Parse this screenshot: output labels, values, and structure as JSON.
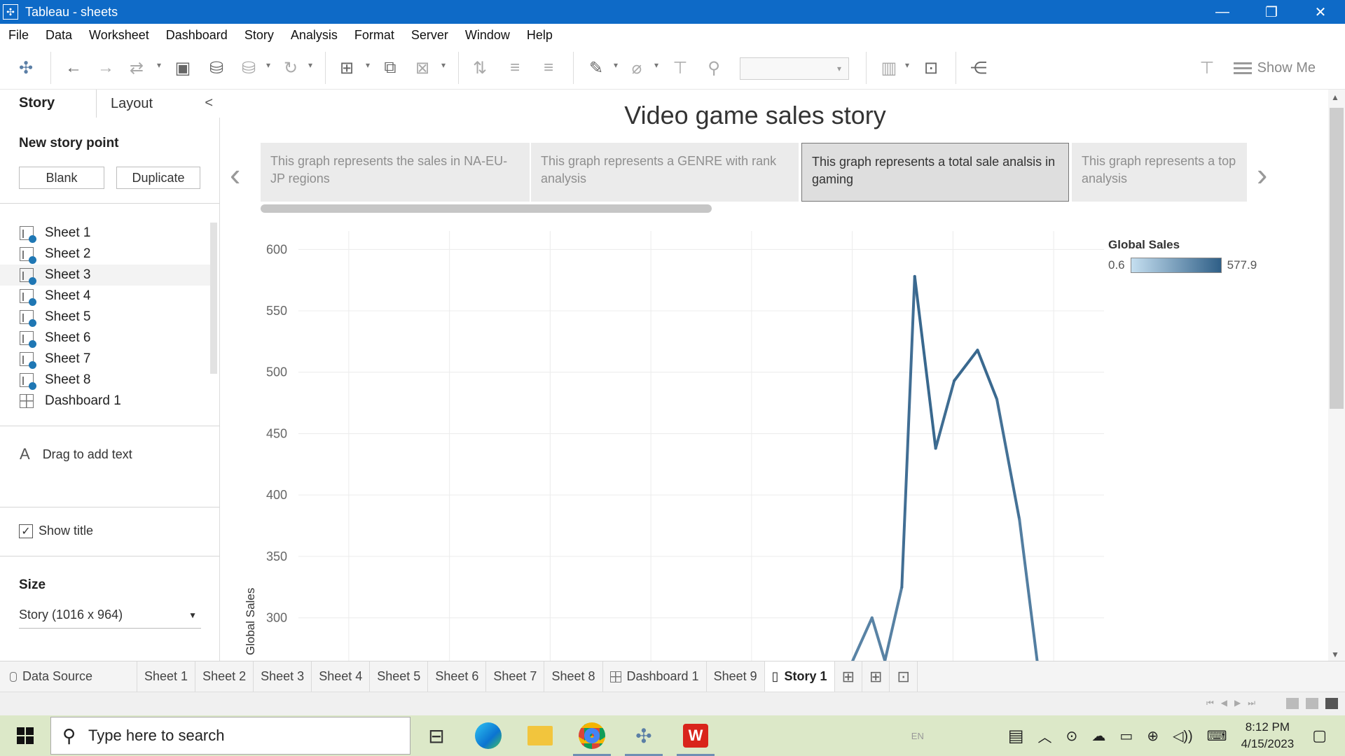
{
  "window": {
    "title": "Tableau - sheets",
    "minimize": "—",
    "restore": "❐",
    "close": "✕"
  },
  "menu": [
    "File",
    "Data",
    "Worksheet",
    "Dashboard",
    "Story",
    "Analysis",
    "Format",
    "Server",
    "Window",
    "Help"
  ],
  "toolbar": {
    "show_me": "Show Me"
  },
  "left_panel": {
    "tab_story": "Story",
    "tab_layout": "Layout",
    "collapse": "<",
    "new_story_point": "New story point",
    "blank_button": "Blank",
    "duplicate_button": "Duplicate",
    "sheets": [
      "Sheet 1",
      "Sheet 2",
      "Sheet 3",
      "Sheet 4",
      "Sheet 5",
      "Sheet 6",
      "Sheet 7",
      "Sheet 8"
    ],
    "dashboard": "Dashboard 1",
    "drag_to_add_text": "Drag to add text",
    "text_icon": "A",
    "show_title": "Show title",
    "show_title_checked": true,
    "size_heading": "Size",
    "size_value": "Story (1016 x 964)"
  },
  "story": {
    "title": "Video game sales story",
    "points": [
      "This graph represents the sales in NA-EU-JP regions",
      "This graph represents a  GENRE  with rank analysis",
      "This graph represents a total sale analsis in gaming",
      "This graph  represents a top analysis"
    ],
    "active_point": 2
  },
  "chart_data": {
    "type": "line",
    "ylabel": "Global Sales",
    "y_ticks": [
      300,
      350,
      400,
      450,
      500,
      550,
      600
    ],
    "y_visible_range": [
      265,
      615
    ],
    "x_gridlines": 8,
    "x_range": [
      0,
      1
    ],
    "points": [
      {
        "x": 0.688,
        "y": 265
      },
      {
        "x": 0.712,
        "y": 300
      },
      {
        "x": 0.728,
        "y": 265
      },
      {
        "x": 0.749,
        "y": 325
      },
      {
        "x": 0.765,
        "y": 578
      },
      {
        "x": 0.791,
        "y": 438
      },
      {
        "x": 0.814,
        "y": 493
      },
      {
        "x": 0.843,
        "y": 518
      },
      {
        "x": 0.867,
        "y": 478
      },
      {
        "x": 0.895,
        "y": 380
      },
      {
        "x": 0.917,
        "y": 265
      }
    ],
    "legend": {
      "title": "Global Sales",
      "min": "0.6",
      "max": "577.9",
      "color_low": "#c5dff0",
      "color_high": "#2f5f87"
    }
  },
  "bottom_tabs": {
    "data_source": "Data Source",
    "tabs": [
      "Sheet 1",
      "Sheet 2",
      "Sheet 3",
      "Sheet 4",
      "Sheet 5",
      "Sheet 6",
      "Sheet 7",
      "Sheet 8",
      "Dashboard 1",
      "Sheet 9",
      "Story 1"
    ],
    "active": "Story 1"
  },
  "taskbar": {
    "search_placeholder": "Type here to search",
    "lang": "EN",
    "time": "8:12 PM",
    "date": "4/15/2023"
  }
}
